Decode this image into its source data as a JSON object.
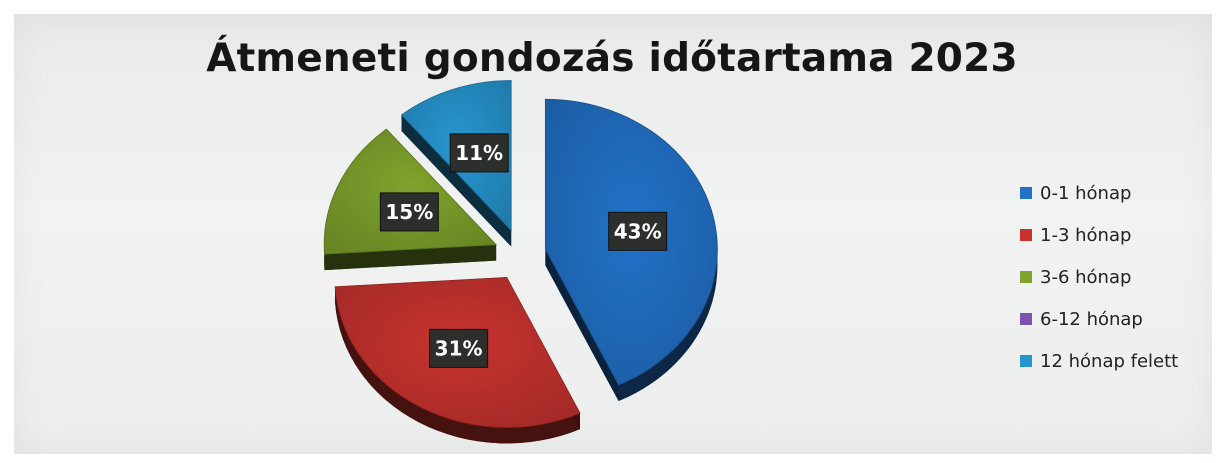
{
  "chart_data": {
    "type": "pie",
    "title": "Átmeneti gondozás időtartama 2023",
    "series": [
      {
        "name": "0-1 hónap",
        "value": 43,
        "label": "43%",
        "color": "#2272c8"
      },
      {
        "name": "1-3 hónap",
        "value": 31,
        "label": "31%",
        "color": "#c8332f"
      },
      {
        "name": "3-6 hónap",
        "value": 15,
        "label": "15%",
        "color": "#7fa32c"
      },
      {
        "name": "6-12 hónap",
        "value": 0,
        "label": "",
        "color": "#7b54b0"
      },
      {
        "name": "12 hónap felett",
        "value": 11,
        "label": "11%",
        "color": "#2796d0"
      }
    ],
    "legend_position": "right",
    "exploded": true,
    "style": "3d"
  }
}
